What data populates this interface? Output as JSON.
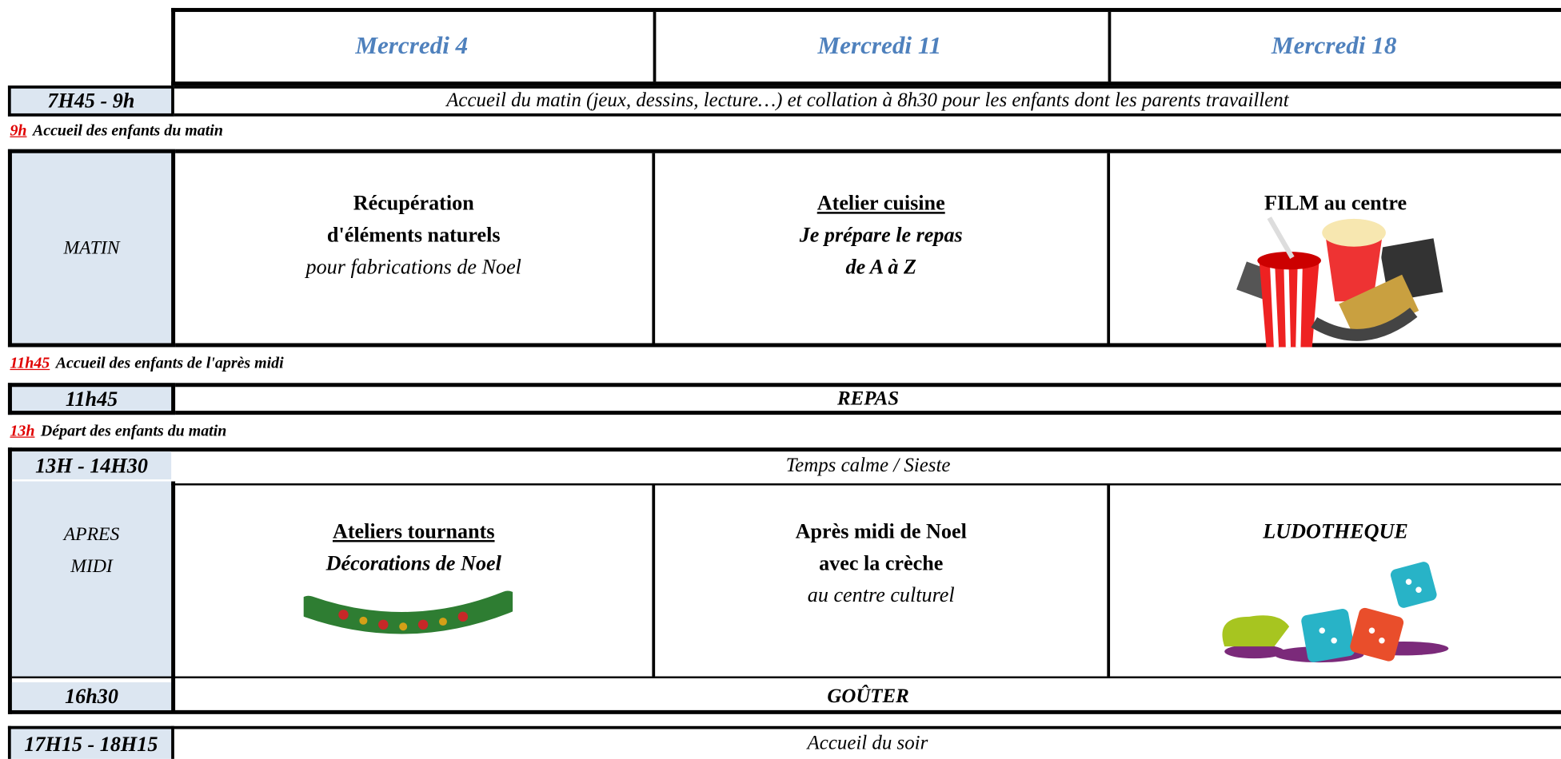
{
  "days": [
    "Mercredi 4",
    "Mercredi 11",
    "Mercredi 18"
  ],
  "accueil_matin": {
    "time": "7H45 - 9h",
    "text": "Accueil du matin (jeux, dessins, lecture…) et collation à 8h30 pour les enfants dont les parents travaillent"
  },
  "notes": [
    {
      "time": "9h",
      "text": "Accueil des enfants du matin"
    },
    {
      "time": "11h45",
      "text": "Accueil des enfants de l'après midi"
    },
    {
      "time": "13h",
      "text": "Départ des enfants du matin"
    }
  ],
  "matin": {
    "label": "MATIN",
    "activities": [
      [
        "Récupération",
        "d'éléments naturels",
        "pour fabrications de Noel"
      ],
      [
        "Atelier cuisine",
        "Je prépare le repas",
        "de A à Z"
      ],
      [
        "FILM au centre"
      ]
    ]
  },
  "repas": {
    "time": "11h45",
    "text": "REPAS"
  },
  "calme": {
    "time": "13H - 14H30",
    "text": "Temps calme / Sieste"
  },
  "apres_midi": {
    "label": [
      "APRES",
      "MIDI"
    ],
    "activities": [
      [
        "Ateliers tournants",
        "Décorations de Noel"
      ],
      [
        "Après midi de Noel",
        "avec la crèche",
        "au centre culturel"
      ],
      [
        "LUDOTHEQUE"
      ]
    ]
  },
  "gouter": {
    "time": "16h30",
    "text": "GOÛTER"
  },
  "soir": {
    "time": "17H15 - 18H15",
    "text": "Accueil du soir"
  }
}
